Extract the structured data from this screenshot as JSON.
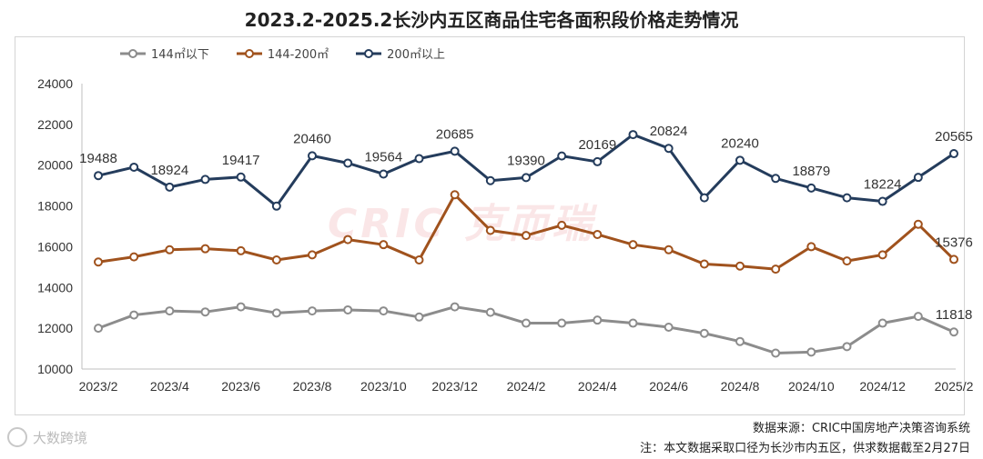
{
  "chart_data": {
    "type": "line",
    "title": "2023.2-2025.2长沙内五区商品住宅各面积段价格走势情况",
    "x": [
      "2023/2",
      "2023/3",
      "2023/4",
      "2023/5",
      "2023/6",
      "2023/7",
      "2023/8",
      "2023/9",
      "2023/10",
      "2023/11",
      "2023/12",
      "2024/1",
      "2024/2",
      "2024/3",
      "2024/4",
      "2024/5",
      "2024/6",
      "2024/7",
      "2024/8",
      "2024/9",
      "2024/10",
      "2024/11",
      "2024/12",
      "2025/1",
      "2025/2"
    ],
    "tick_labels": [
      "2023/2",
      "2023/4",
      "2023/6",
      "2023/8",
      "2023/10",
      "2023/12",
      "2024/2",
      "2024/4",
      "2024/6",
      "2024/8",
      "2024/10",
      "2024/12",
      "2025/2"
    ],
    "ylim": [
      10000,
      24000
    ],
    "yticks": [
      "10000",
      "12000",
      "14000",
      "16000",
      "18000",
      "20000",
      "22000",
      "24000"
    ],
    "legend_position": "top-left",
    "series": [
      {
        "name": "144㎡以下",
        "color": "#8c8c8c",
        "values": [
          12000,
          12650,
          12850,
          12800,
          13050,
          12750,
          12850,
          12900,
          12850,
          12550,
          13050,
          12780,
          12250,
          12250,
          12400,
          12250,
          12050,
          11750,
          11350,
          10780,
          10830,
          11100,
          12250,
          12580,
          11818
        ],
        "labels": {
          "24": "11818"
        }
      },
      {
        "name": "144-200㎡",
        "color": "#a0521d",
        "values": [
          15250,
          15500,
          15850,
          15900,
          15800,
          15350,
          15600,
          16350,
          16100,
          15350,
          18550,
          16800,
          16550,
          17050,
          16600,
          16100,
          15850,
          15150,
          15050,
          14900,
          16000,
          15300,
          15600,
          17100,
          15376
        ],
        "labels": {
          "24": "15376"
        }
      },
      {
        "name": "200㎡以上",
        "color": "#243c5c",
        "values": [
          19488,
          19900,
          18924,
          19300,
          19417,
          17990,
          20460,
          20100,
          19564,
          20320,
          20685,
          19240,
          19390,
          20450,
          20169,
          21500,
          20824,
          18400,
          20240,
          19350,
          18879,
          18400,
          18224,
          19400,
          20565
        ],
        "labels": {
          "0": "19488",
          "2": "18924",
          "4": "19417",
          "6": "20460",
          "8": "19564",
          "10": "20685",
          "12": "19390",
          "14": "20169",
          "16": "20824",
          "18": "20240",
          "20": "18879",
          "22": "18224",
          "24": "20565"
        }
      }
    ]
  },
  "footer": {
    "source": "数据来源：CRIC中国房地产决策咨询系统",
    "note": "注：本文数据采取口径为长沙市内五区，供求数据截至2月27日"
  },
  "watermarks": {
    "left": "大数跨境",
    "center": "CRIC 克而瑞"
  }
}
